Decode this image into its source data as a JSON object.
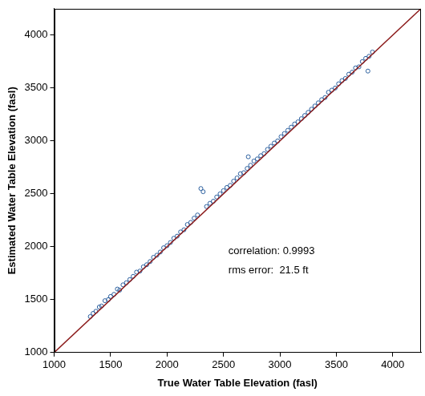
{
  "chart_data": {
    "type": "scatter",
    "x_label": "True Water Table Elevation (fasl)",
    "y_label": "Estimated Water Table Elevation (fasl)",
    "annotations": [
      "correlation: 0.9993",
      "rms error:  21.5 ft"
    ],
    "xlim": [
      1000,
      4250
    ],
    "ylim": [
      1000,
      4250
    ],
    "xticks": [
      1000,
      1500,
      2000,
      2500,
      3000,
      3500,
      4000
    ],
    "yticks": [
      1000,
      1500,
      2000,
      2500,
      3000,
      3500,
      4000
    ],
    "grid": false,
    "series": [
      {
        "type": "scatter",
        "marker": "circle",
        "color": "#2b5f9e",
        "x": [
          1320,
          1345,
          1370,
          1400,
          1420,
          1450,
          1480,
          1500,
          1530,
          1560,
          1580,
          1610,
          1640,
          1670,
          1700,
          1730,
          1760,
          1790,
          1820,
          1850,
          1880,
          1910,
          1940,
          1970,
          2000,
          2030,
          2060,
          2090,
          2120,
          2150,
          2180,
          2210,
          2240,
          2270,
          2300,
          2320,
          2350,
          2380,
          2410,
          2440,
          2470,
          2500,
          2530,
          2560,
          2590,
          2620,
          2650,
          2680,
          2710,
          2740,
          2770,
          2800,
          2830,
          2860,
          2890,
          2920,
          2950,
          2980,
          3010,
          3040,
          3070,
          3100,
          3130,
          3160,
          3190,
          3220,
          3250,
          3280,
          3310,
          3340,
          3370,
          3400,
          3430,
          3460,
          3490,
          3520,
          3550,
          3580,
          3610,
          3640,
          3670,
          3700,
          3730,
          3760,
          3790,
          3820,
          3780,
          2720
        ],
        "y": [
          1340,
          1370,
          1390,
          1430,
          1440,
          1490,
          1500,
          1530,
          1550,
          1600,
          1590,
          1640,
          1660,
          1690,
          1720,
          1760,
          1770,
          1810,
          1830,
          1860,
          1900,
          1920,
          1950,
          1990,
          2010,
          2040,
          2080,
          2100,
          2140,
          2160,
          2210,
          2230,
          2270,
          2300,
          2550,
          2520,
          2380,
          2410,
          2430,
          2470,
          2500,
          2530,
          2560,
          2580,
          2620,
          2650,
          2690,
          2700,
          2740,
          2770,
          2810,
          2830,
          2860,
          2880,
          2920,
          2950,
          2980,
          3000,
          3040,
          3070,
          3100,
          3130,
          3160,
          3180,
          3210,
          3240,
          3270,
          3300,
          3330,
          3360,
          3390,
          3410,
          3460,
          3480,
          3500,
          3540,
          3570,
          3590,
          3630,
          3650,
          3690,
          3700,
          3750,
          3780,
          3800,
          3840,
          3660,
          2850
        ]
      },
      {
        "type": "line",
        "line_style": "solid",
        "color": "#8b1a1a",
        "x": [
          1000,
          4250
        ],
        "y": [
          1000,
          4250
        ]
      }
    ]
  }
}
